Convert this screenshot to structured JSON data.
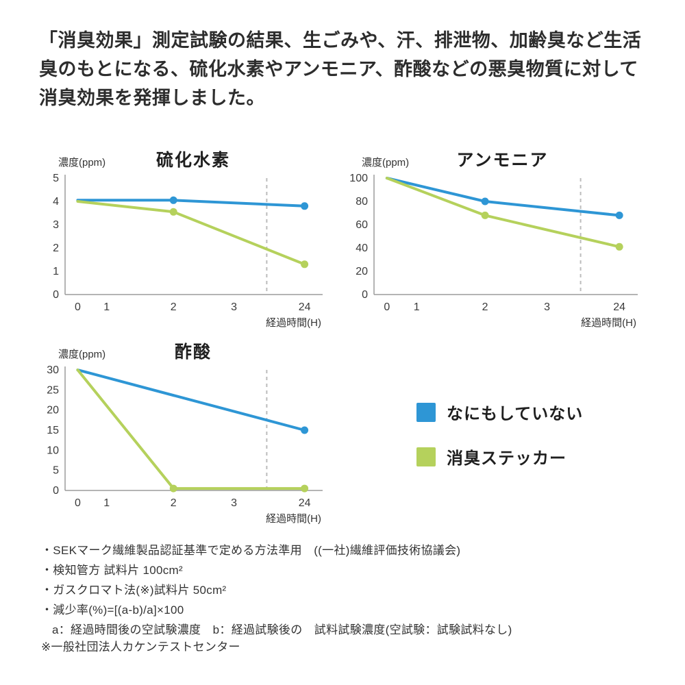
{
  "page": {
    "header_text": "「消臭効果」測定試験の結果、生ごみや、汗、排泄物、加齢臭など生活臭のもとになる、硫化水素やアンモニア、酢酸などの悪臭物質に対して消臭効果を発揮しました。"
  },
  "colors": {
    "blue": "#2e96d5",
    "green": "#b5d15c",
    "axis": "#9b9b9b",
    "dashed": "#bcbcbc",
    "tick_text": "#3a3a3a"
  },
  "legend": {
    "items": [
      {
        "label": "なにもしていない",
        "color_key": "blue"
      },
      {
        "label": "消臭ステッカー",
        "color_key": "green"
      }
    ]
  },
  "chart_data": [
    {
      "type": "line",
      "title": "硫化水素",
      "ylabel": "濃度(ppm)",
      "xlabel": "経過時間(H)",
      "x_ticks": [
        "0",
        "1",
        "2",
        "3",
        "24"
      ],
      "y_ticks": [
        5,
        4,
        3,
        2,
        1,
        0
      ],
      "ylim": [
        0,
        5
      ],
      "axis_break_after": "3",
      "series": [
        {
          "name": "なにもしていない",
          "color_key": "blue",
          "points": [
            [
              0,
              4.05
            ],
            [
              2,
              4.05
            ],
            [
              24,
              3.8
            ]
          ],
          "markers": [
            2,
            24
          ]
        },
        {
          "name": "消臭ステッカー",
          "color_key": "green",
          "points": [
            [
              0,
              4.0
            ],
            [
              2,
              3.55
            ],
            [
              24,
              1.3
            ]
          ],
          "markers": [
            2,
            24
          ]
        }
      ]
    },
    {
      "type": "line",
      "title": "アンモニア",
      "ylabel": "濃度(ppm)",
      "xlabel": "経過時間(H)",
      "x_ticks": [
        "0",
        "1",
        "2",
        "3",
        "24"
      ],
      "y_ticks": [
        100,
        80,
        60,
        40,
        20,
        0
      ],
      "ylim": [
        0,
        100
      ],
      "axis_break_after": "3",
      "series": [
        {
          "name": "なにもしていない",
          "color_key": "blue",
          "points": [
            [
              0,
              100
            ],
            [
              2,
              80
            ],
            [
              24,
              68
            ]
          ],
          "markers": [
            2,
            24
          ]
        },
        {
          "name": "消臭ステッカー",
          "color_key": "green",
          "points": [
            [
              0,
              100
            ],
            [
              2,
              68
            ],
            [
              24,
              41
            ]
          ],
          "markers": [
            2,
            24
          ]
        }
      ]
    },
    {
      "type": "line",
      "title": "酢酸",
      "ylabel": "濃度(ppm)",
      "xlabel": "経過時間(H)",
      "x_ticks": [
        "0",
        "1",
        "2",
        "3",
        "24"
      ],
      "y_ticks": [
        30,
        25,
        20,
        15,
        10,
        5,
        0
      ],
      "ylim": [
        0,
        30
      ],
      "axis_break_after": "3",
      "series": [
        {
          "name": "なにもしていない",
          "color_key": "blue",
          "points": [
            [
              0,
              30
            ],
            [
              24,
              15
            ]
          ],
          "markers": [
            24
          ]
        },
        {
          "name": "消臭ステッカー",
          "color_key": "green",
          "points": [
            [
              0,
              30
            ],
            [
              2,
              0.5
            ],
            [
              24,
              0.5
            ]
          ],
          "markers": [
            2,
            24
          ]
        }
      ]
    }
  ],
  "footnotes": [
    "・SEKマーク繊維製品認証基準で定める方法準用　((一社)繊維評価技術協議会)",
    "・検知管方 試料片 100cm²",
    "・ガスクロマト法(※)試料片 50cm²",
    "・減少率(%)=[(a-b)/a]×100",
    "a：経過時間後の空試験濃度　b：経過試験後の　試料試験濃度(空試験：試験試料なし)"
  ],
  "footer_note": "※一般社団法人カケンテストセンター"
}
